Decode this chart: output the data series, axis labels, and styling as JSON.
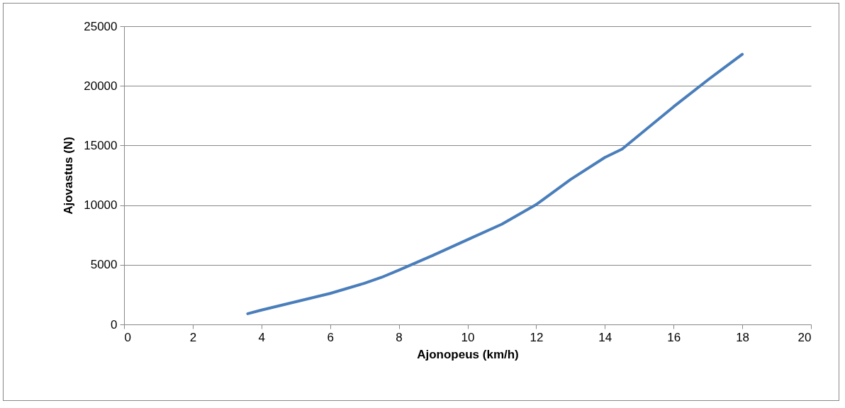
{
  "chart_data": {
    "type": "line",
    "xlabel": "Ajonopeus (km/h)",
    "ylabel": "Ajovastus (N)",
    "series": [
      {
        "color": "#4a7ebb",
        "x": [
          3.6,
          4,
          5,
          6,
          7,
          7.5,
          8,
          9,
          10,
          11,
          12,
          13,
          14,
          14.5,
          16,
          17,
          18
        ],
        "values": [
          900,
          1200,
          1900,
          2600,
          3450,
          3950,
          4550,
          5800,
          7100,
          8400,
          10050,
          12150,
          14000,
          14700,
          18250,
          20500,
          22650
        ]
      }
    ],
    "xlim": [
      0,
      20
    ],
    "xticks": [
      0,
      2,
      4,
      6,
      8,
      10,
      12,
      14,
      16,
      18,
      20
    ],
    "ylim": [
      0,
      25000
    ],
    "yticks": [
      0,
      5000,
      10000,
      15000,
      20000,
      25000
    ],
    "grid": "y",
    "marker": "none",
    "line_style": "solid"
  }
}
